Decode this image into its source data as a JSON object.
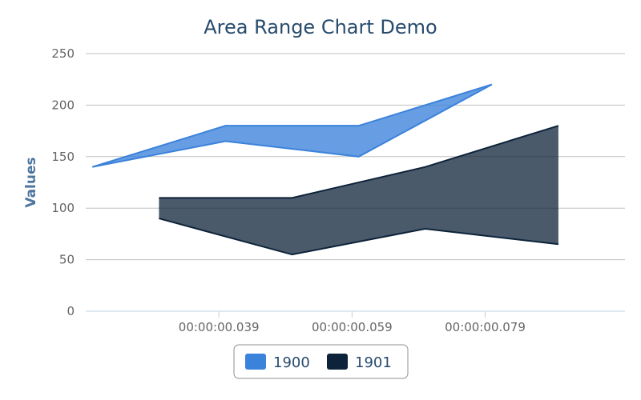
{
  "chart_data": {
    "type": "area",
    "title": "Area Range Chart Demo",
    "xlabel": "",
    "ylabel": "Values",
    "ylim": [
      0,
      250
    ],
    "yticks": [
      0,
      50,
      100,
      150,
      200,
      250
    ],
    "xlim": [
      0.019,
      0.1
    ],
    "xticks": [
      {
        "value": 0.039,
        "label": "00:00:00.039"
      },
      {
        "value": 0.059,
        "label": "00:00:00.059"
      },
      {
        "value": 0.079,
        "label": "00:00:00.079"
      }
    ],
    "grid": true,
    "legend_position": "bottom-center",
    "series": [
      {
        "name": "1900",
        "color": "#3b82db",
        "points": [
          {
            "x": 0.02,
            "low": 140,
            "high": 140
          },
          {
            "x": 0.04,
            "low": 165,
            "high": 180
          },
          {
            "x": 0.06,
            "low": 150,
            "high": 180
          },
          {
            "x": 0.08,
            "low": 220,
            "high": 220
          }
        ]
      },
      {
        "name": "1901",
        "color": "#0d233a",
        "points": [
          {
            "x": 0.03,
            "low": 90,
            "high": 110
          },
          {
            "x": 0.05,
            "low": 55,
            "high": 110
          },
          {
            "x": 0.07,
            "low": 80,
            "high": 140
          },
          {
            "x": 0.09,
            "low": 65,
            "high": 180
          }
        ]
      }
    ]
  }
}
